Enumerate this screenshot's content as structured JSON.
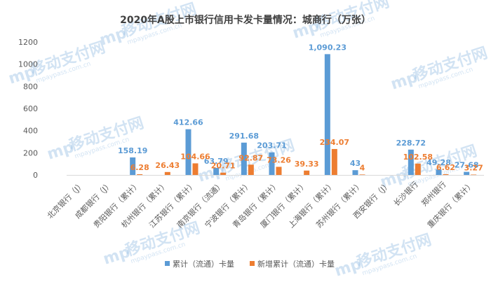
{
  "chart_data": {
    "type": "bar",
    "title": "2020年A股上市银行信用卡发卡量情况：城商行（万张）",
    "categories": [
      "北京银行（J）",
      "成都银行（J）",
      "贵阳银行（累计）",
      "杭州银行（累计）",
      "江苏银行（累计）",
      "南京银行（流通）",
      "宁波银行（累计）",
      "青岛银行（累计）",
      "厦门银行（累计）",
      "上海银行（累计）",
      "苏州银行（累计）",
      "西安银行（J）",
      "长沙银行",
      "郑州银行",
      "重庆银行（累计）"
    ],
    "series": [
      {
        "name": "累计（流通）卡量",
        "color": "#5b9bd5",
        "values": [
          null,
          null,
          158.19,
          null,
          412.66,
          63.79,
          291.68,
          203.71,
          null,
          1090.23,
          43,
          null,
          228.72,
          49.28,
          27.68
        ],
        "labels": [
          null,
          null,
          "158.19",
          null,
          "412.66",
          "63.79",
          "291.68",
          "203.71",
          null,
          "1,090.23",
          "43",
          null,
          "228.72",
          "49.28",
          "27.68"
        ]
      },
      {
        "name": "新增累计（流通）卡量",
        "color": "#ed7d31",
        "values": [
          null,
          null,
          6.28,
          26.43,
          104.66,
          20.71,
          92.87,
          73.26,
          39.33,
          234.07,
          4,
          null,
          102.58,
          6.62,
          3.27
        ],
        "labels": [
          null,
          null,
          "6.28",
          "26.43",
          "104.66",
          "20.71",
          "92.87",
          "73.26",
          "39.33",
          "234.07",
          "4",
          null,
          "102.58",
          "6.62",
          "3.27"
        ]
      }
    ],
    "ylim": [
      0,
      1200
    ],
    "yticks": [
      0,
      200,
      400,
      600,
      800,
      1000,
      1200
    ],
    "grid": false,
    "legend": "bottom"
  },
  "watermark": {
    "text": "移动支付网",
    "url": "mpaypass.com.cn",
    "logo": "mp",
    "color": "#9dc3e6"
  }
}
